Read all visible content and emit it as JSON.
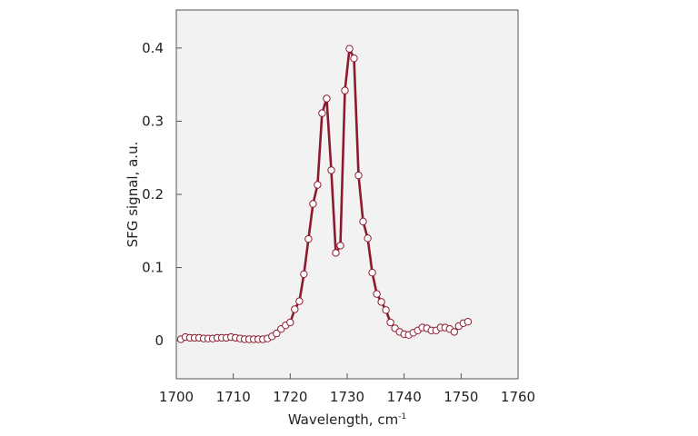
{
  "colors": {
    "line": "#8b1a2e",
    "marker_fill": "#ffffff",
    "marker_stroke": "#8b1a2e",
    "plot_bg": "#f3f2f2",
    "frame": "#555555"
  },
  "chart_data": {
    "type": "line",
    "title": "",
    "xlabel": "Wavelength, cm",
    "xlabel_superscript": "-1",
    "ylabel": "SFG signal, a.u.",
    "xlim": [
      1700,
      1760
    ],
    "ylim": [
      -0.052,
      0.452
    ],
    "xticks": [
      1700,
      1710,
      1720,
      1730,
      1740,
      1750,
      1760
    ],
    "yticks": [
      0,
      0.1,
      0.2,
      0.3,
      0.4
    ],
    "ytick_labels": [
      "0",
      "0.1",
      "0.2",
      "0.3",
      "0.4"
    ],
    "grid": false,
    "legend": "none",
    "series": [
      {
        "marker": "open-circle",
        "points": [
          [
            1700.8,
            0.002
          ],
          [
            1701.6,
            0.005
          ],
          [
            1702.4,
            0.004
          ],
          [
            1703.2,
            0.004
          ],
          [
            1704.0,
            0.004
          ],
          [
            1704.8,
            0.003
          ],
          [
            1705.6,
            0.003
          ],
          [
            1706.4,
            0.003
          ],
          [
            1707.2,
            0.004
          ],
          [
            1708.0,
            0.004
          ],
          [
            1708.8,
            0.004
          ],
          [
            1709.6,
            0.005
          ],
          [
            1710.4,
            0.004
          ],
          [
            1711.2,
            0.003
          ],
          [
            1712.0,
            0.002
          ],
          [
            1712.8,
            0.002
          ],
          [
            1713.6,
            0.002
          ],
          [
            1714.4,
            0.002
          ],
          [
            1715.2,
            0.002
          ],
          [
            1716.0,
            0.003
          ],
          [
            1716.8,
            0.006
          ],
          [
            1717.6,
            0.01
          ],
          [
            1718.4,
            0.016
          ],
          [
            1719.2,
            0.021
          ],
          [
            1720.0,
            0.025
          ],
          [
            1720.8,
            0.043
          ],
          [
            1721.6,
            0.054
          ],
          [
            1722.4,
            0.091
          ],
          [
            1723.2,
            0.139
          ],
          [
            1724.0,
            0.187
          ],
          [
            1724.8,
            0.213
          ],
          [
            1725.6,
            0.311
          ],
          [
            1726.4,
            0.331
          ],
          [
            1727.2,
            0.233
          ],
          [
            1728.0,
            0.12
          ],
          [
            1728.8,
            0.13
          ],
          [
            1729.6,
            0.342
          ],
          [
            1730.4,
            0.399
          ],
          [
            1731.2,
            0.386
          ],
          [
            1732.0,
            0.226
          ],
          [
            1732.8,
            0.163
          ],
          [
            1733.6,
            0.14
          ],
          [
            1734.4,
            0.093
          ],
          [
            1735.2,
            0.064
          ],
          [
            1736.0,
            0.053
          ],
          [
            1736.8,
            0.042
          ],
          [
            1737.6,
            0.025
          ],
          [
            1738.4,
            0.017
          ],
          [
            1739.2,
            0.012
          ],
          [
            1740.0,
            0.009
          ],
          [
            1740.8,
            0.008
          ],
          [
            1741.6,
            0.011
          ],
          [
            1742.4,
            0.014
          ],
          [
            1743.2,
            0.018
          ],
          [
            1744.0,
            0.017
          ],
          [
            1744.8,
            0.014
          ],
          [
            1745.6,
            0.014
          ],
          [
            1746.4,
            0.018
          ],
          [
            1747.2,
            0.018
          ],
          [
            1748.0,
            0.016
          ],
          [
            1748.8,
            0.012
          ],
          [
            1749.6,
            0.02
          ],
          [
            1750.4,
            0.024
          ],
          [
            1751.2,
            0.026
          ]
        ]
      }
    ]
  }
}
